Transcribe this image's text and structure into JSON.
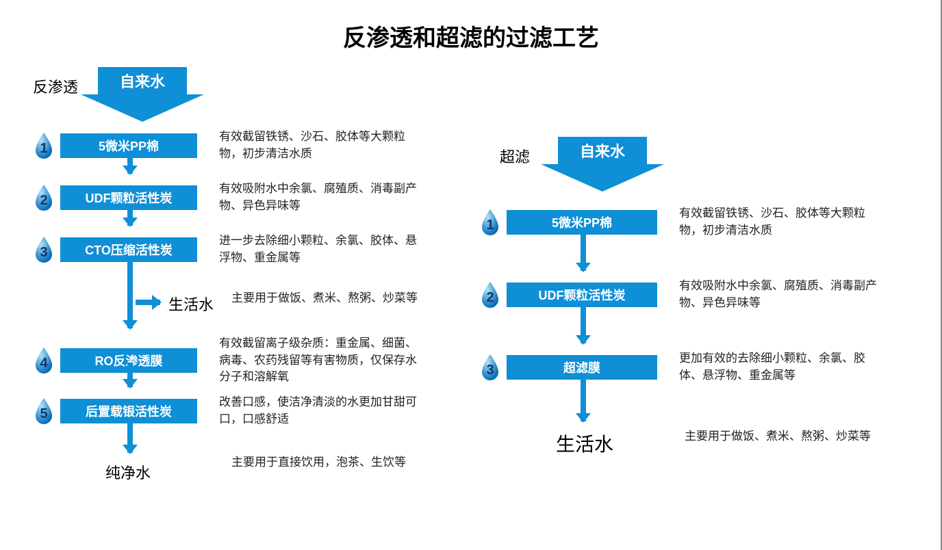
{
  "title": "反渗透和超滤的过滤工艺",
  "colors": {
    "primary": "#0f8fd6",
    "primary_dark": "#0a7bc0",
    "drop_light": "#6cc6f2",
    "drop_dark": "#0a6db8",
    "text": "#222222",
    "background": "#ffffff"
  },
  "fontsize": {
    "title": 34,
    "section": 22,
    "step": 18,
    "desc": 17,
    "output": 22
  },
  "left": {
    "section_label": "反渗透",
    "source": "自来水",
    "steps": [
      {
        "num": "1",
        "label": "5微米PP棉",
        "desc": "有效截留铁锈、沙石、胶体等大颗粒物，初步清洁水质"
      },
      {
        "num": "2",
        "label": "UDF颗粒活性炭",
        "desc": "有效吸附水中余氯、腐殖质、消毒副产物、异色异味等"
      },
      {
        "num": "3",
        "label": "CTO压缩活性炭",
        "desc": "进一步去除细小颗粒、余氯、胶体、悬浮物、重金属等"
      },
      {
        "num": "4",
        "label": "RO反渗透膜",
        "desc": "有效截留离子级杂质：重金属、细菌、病毒、农药残留等有害物质，仅保存水分子和溶解氧"
      },
      {
        "num": "5",
        "label": "后置载银活性炭",
        "desc": "改善口感，使洁净清淡的水更加甘甜可口，口感舒适"
      }
    ],
    "branch": {
      "label": "生活水",
      "desc": "主要用于做饭、煮米、熬粥、炒菜等"
    },
    "output": {
      "label": "纯净水",
      "desc": "主要用于直接饮用，泡茶、生饮等"
    }
  },
  "right": {
    "section_label": "超滤",
    "source": "自来水",
    "steps": [
      {
        "num": "1",
        "label": "5微米PP棉",
        "desc": "有效截留铁锈、沙石、胶体等大颗粒物，初步清洁水质"
      },
      {
        "num": "2",
        "label": "UDF颗粒活性炭",
        "desc": "有效吸附水中余氯、腐殖质、消毒副产物、异色异味等"
      },
      {
        "num": "3",
        "label": "超滤膜",
        "desc": "更加有效的去除细小颗粒、余氯、胶体、悬浮物、重金属等"
      }
    ],
    "output": {
      "label": "生活水",
      "desc": "主要用于做饭、煮米、熬粥、炒菜等"
    }
  }
}
